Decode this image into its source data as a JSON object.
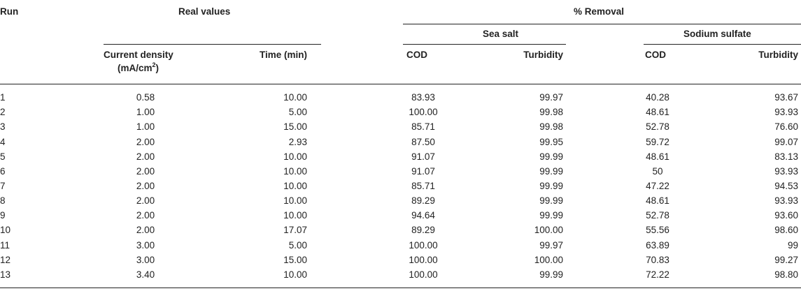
{
  "header": {
    "run": "Run",
    "real_values": "Real values",
    "removal": "% Removal",
    "sea_salt": "Sea salt",
    "sodium_sulfate": "Sodium sulfate",
    "current_density_line1": "Current density",
    "current_density_unit_prefix": "(mA/cm",
    "current_density_unit_sup": "2",
    "current_density_unit_suffix": ")",
    "time": "Time (min)",
    "cod_sea": "COD",
    "turbidity_sea": "Turbidity",
    "cod_sodium": "COD",
    "turbidity_sodium": "Turbidity"
  },
  "rows": [
    {
      "run": "1",
      "cd": "0.58",
      "time": "10.00",
      "cod_sea": "83.93",
      "turb_sea": "99.97",
      "cod_sod": "40.28",
      "turb_sod": "93.67"
    },
    {
      "run": "2",
      "cd": "1.00",
      "time": "5.00",
      "cod_sea": "100.00",
      "turb_sea": "99.98",
      "cod_sod": "48.61",
      "turb_sod": "93.93"
    },
    {
      "run": "3",
      "cd": "1.00",
      "time": "15.00",
      "cod_sea": "85.71",
      "turb_sea": "99.98",
      "cod_sod": "52.78",
      "turb_sod": "76.60"
    },
    {
      "run": "4",
      "cd": "2.00",
      "time": "2.93",
      "cod_sea": "87.50",
      "turb_sea": "99.95",
      "cod_sod": "59.72",
      "turb_sod": "99.07"
    },
    {
      "run": "5",
      "cd": "2.00",
      "time": "10.00",
      "cod_sea": "91.07",
      "turb_sea": "99.99",
      "cod_sod": "48.61",
      "turb_sod": "83.13"
    },
    {
      "run": "6",
      "cd": "2.00",
      "time": "10.00",
      "cod_sea": "91.07",
      "turb_sea": "99.99",
      "cod_sod": "50",
      "turb_sod": "93.93"
    },
    {
      "run": "7",
      "cd": "2.00",
      "time": "10.00",
      "cod_sea": "85.71",
      "turb_sea": "99.99",
      "cod_sod": "47.22",
      "turb_sod": "94.53"
    },
    {
      "run": "8",
      "cd": "2.00",
      "time": "10.00",
      "cod_sea": "89.29",
      "turb_sea": "99.99",
      "cod_sod": "48.61",
      "turb_sod": "93.93"
    },
    {
      "run": "9",
      "cd": "2.00",
      "time": "10.00",
      "cod_sea": "94.64",
      "turb_sea": "99.99",
      "cod_sod": "52.78",
      "turb_sod": "93.60"
    },
    {
      "run": "10",
      "cd": "2.00",
      "time": "17.07",
      "cod_sea": "89.29",
      "turb_sea": "100.00",
      "cod_sod": "55.56",
      "turb_sod": "98.60"
    },
    {
      "run": "11",
      "cd": "3.00",
      "time": "5.00",
      "cod_sea": "100.00",
      "turb_sea": "99.97",
      "cod_sod": "63.89",
      "turb_sod": "99"
    },
    {
      "run": "12",
      "cd": "3.00",
      "time": "15.00",
      "cod_sea": "100.00",
      "turb_sea": "100.00",
      "cod_sod": "70.83",
      "turb_sod": "99.27"
    },
    {
      "run": "13",
      "cd": "3.40",
      "time": "10.00",
      "cod_sea": "100.00",
      "turb_sea": "99.99",
      "cod_sod": "72.22",
      "turb_sod": "98.80"
    }
  ]
}
